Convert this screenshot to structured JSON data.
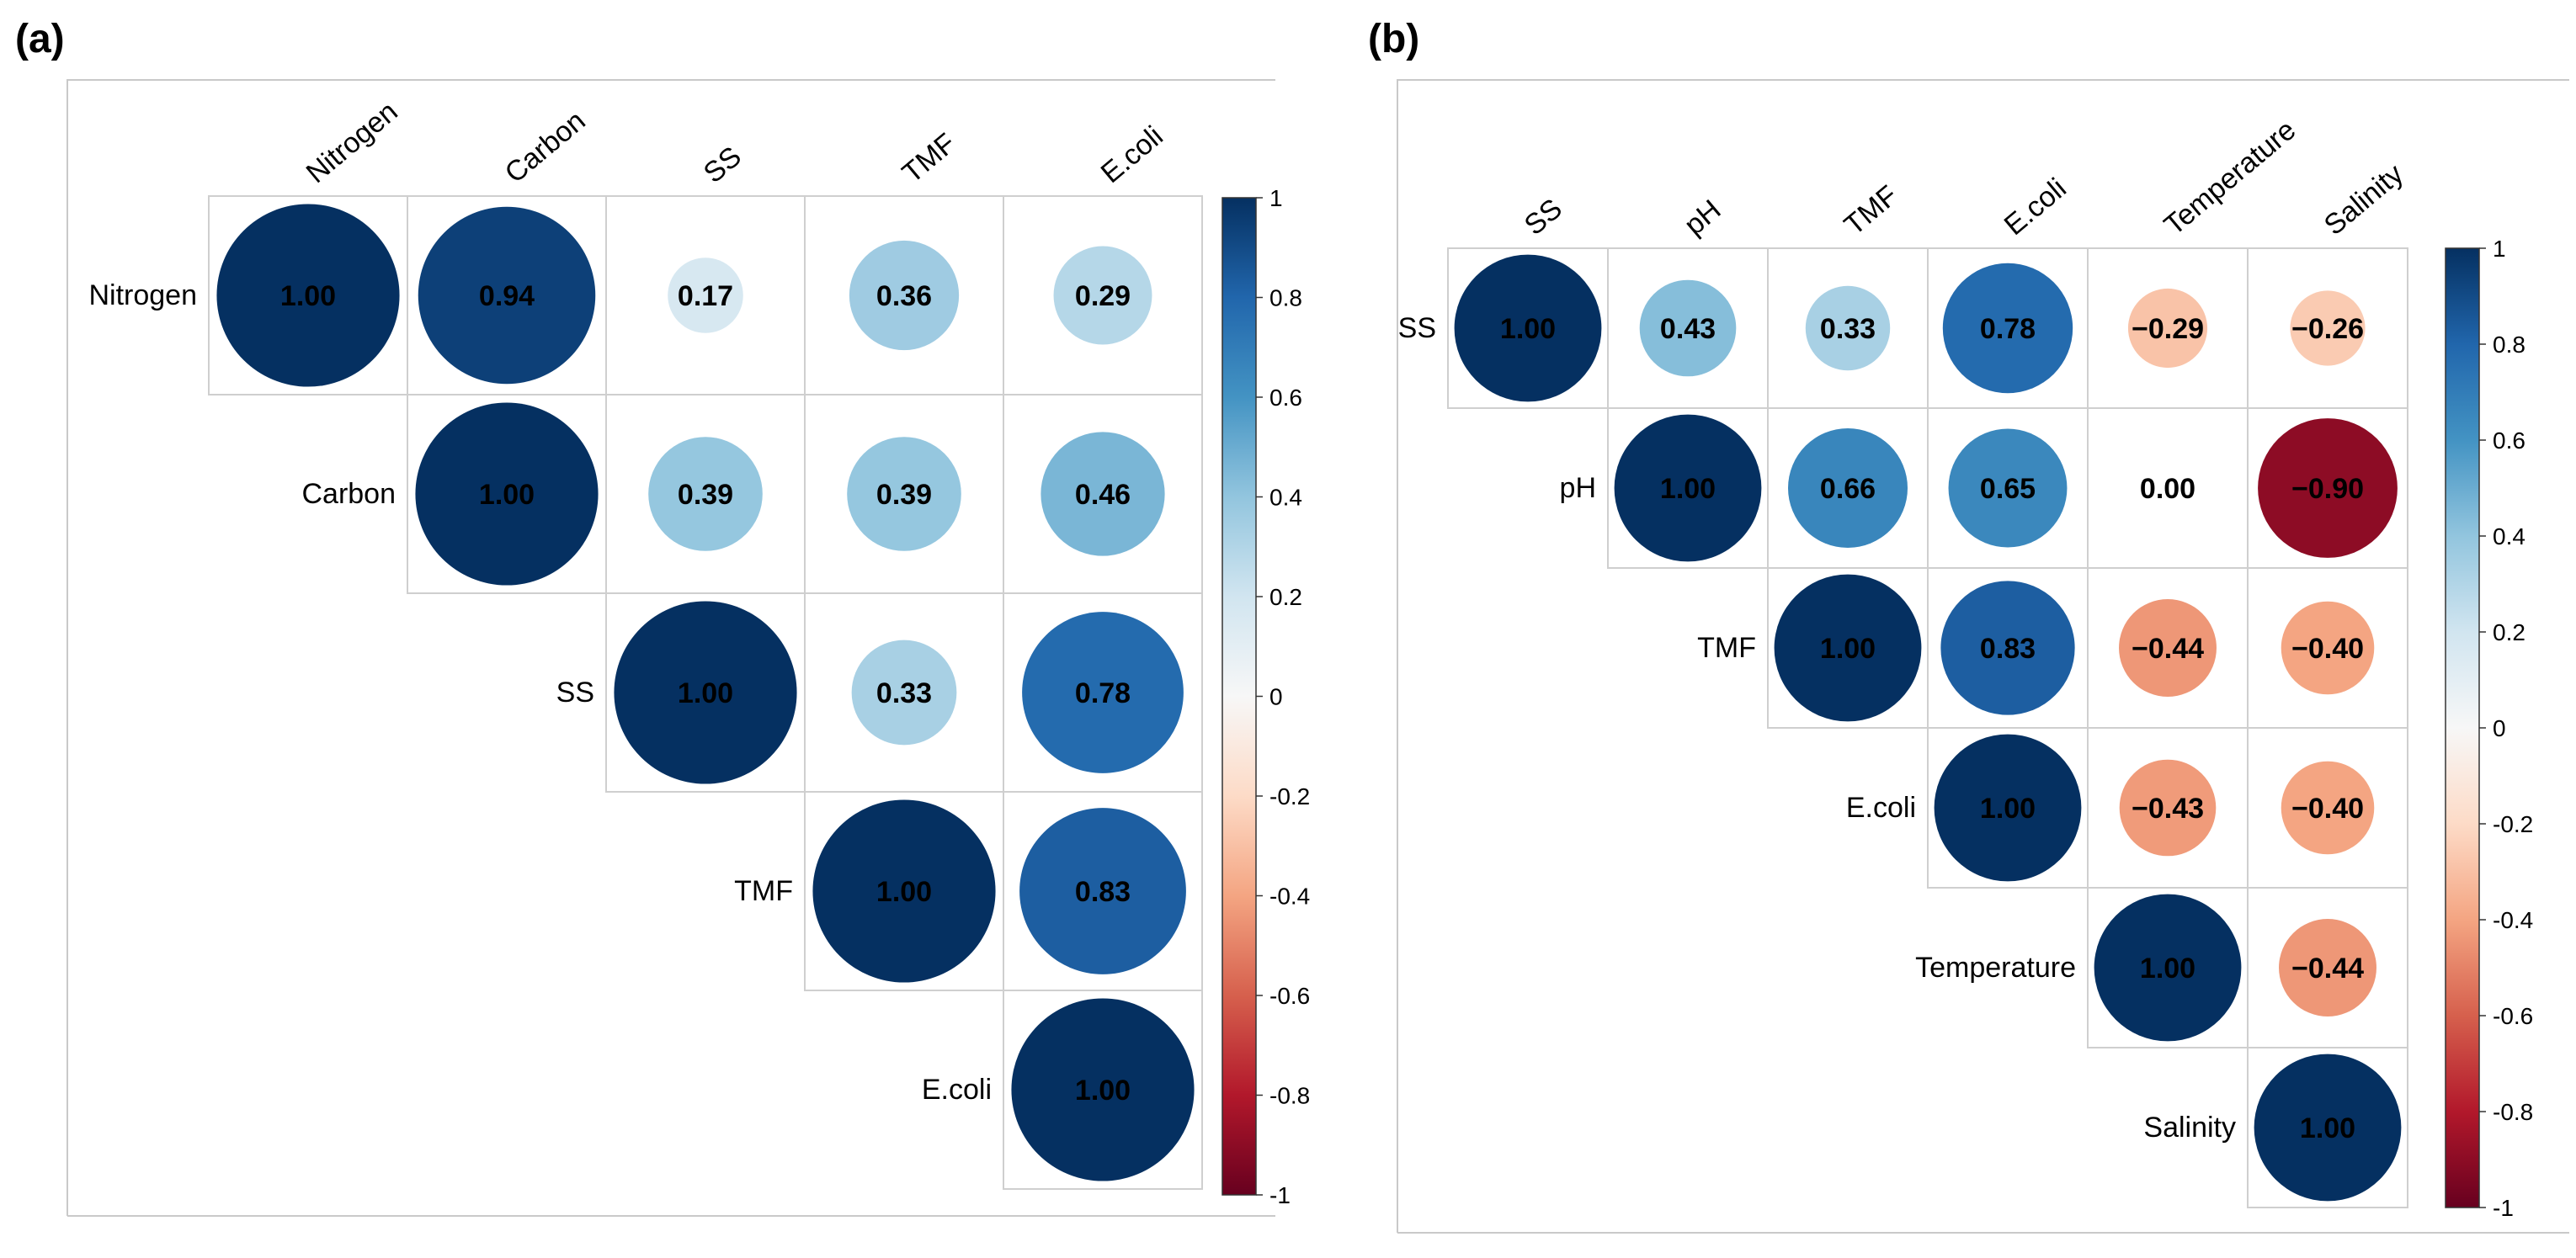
{
  "chart_data": [
    {
      "type": "heatmap",
      "subtype": "correlation-circle",
      "panel_label": "(a)",
      "variables": [
        "Nitrogen",
        "Carbon",
        "SS",
        "TMF",
        "E.coli"
      ],
      "matrix": [
        [
          1.0,
          0.94,
          0.17,
          0.36,
          0.29
        ],
        [
          null,
          1.0,
          0.39,
          0.39,
          0.46
        ],
        [
          null,
          null,
          1.0,
          0.33,
          0.78
        ],
        [
          null,
          null,
          null,
          1.0,
          0.83
        ],
        [
          null,
          null,
          null,
          null,
          1.0
        ]
      ],
      "colorbar": {
        "range": [
          -1,
          1
        ],
        "ticks": [
          "1",
          "0.8",
          "0.6",
          "0.4",
          "0.2",
          "0",
          "-0.2",
          "-0.4",
          "-0.6",
          "-0.8",
          "-1"
        ]
      }
    },
    {
      "type": "heatmap",
      "subtype": "correlation-circle",
      "panel_label": "(b)",
      "variables": [
        "SS",
        "pH",
        "TMF",
        "E.coli",
        "Temperature",
        "Salinity"
      ],
      "matrix": [
        [
          1.0,
          0.43,
          0.33,
          0.78,
          -0.29,
          -0.26
        ],
        [
          null,
          1.0,
          0.66,
          0.65,
          0.0,
          -0.9
        ],
        [
          null,
          null,
          1.0,
          0.83,
          -0.44,
          -0.4
        ],
        [
          null,
          null,
          null,
          1.0,
          -0.43,
          -0.4
        ],
        [
          null,
          null,
          null,
          null,
          1.0,
          -0.44
        ],
        [
          null,
          null,
          null,
          null,
          null,
          1.0
        ]
      ],
      "colorbar": {
        "range": [
          -1,
          1
        ],
        "ticks": [
          "1",
          "0.8",
          "0.6",
          "0.4",
          "0.2",
          "0",
          "-0.2",
          "-0.4",
          "-0.6",
          "-0.8",
          "-1"
        ]
      }
    }
  ]
}
